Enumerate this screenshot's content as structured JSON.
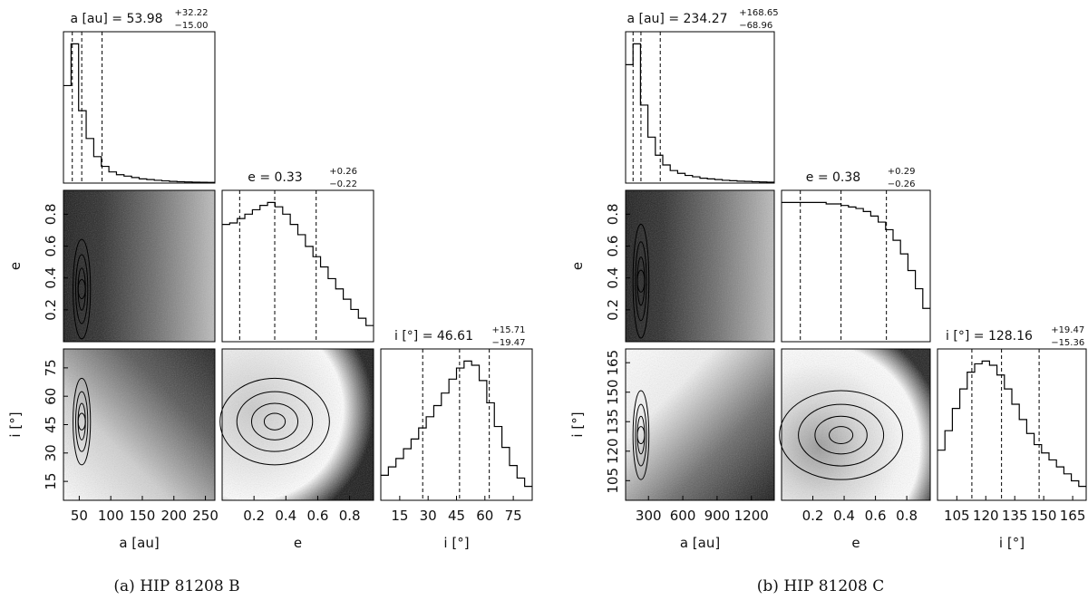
{
  "figures": [
    {
      "caption": "(a) HIP 81208 B",
      "params": [
        {
          "key": "a",
          "axis_label": "a [au]",
          "title_name": "a [au]",
          "median": "53.98",
          "plus": "+32.22",
          "minus": "−15.00",
          "range": [
            25,
            265
          ],
          "ticks": [
            50,
            100,
            150,
            200,
            250
          ],
          "ticklabels": [
            "50",
            "100",
            "150",
            "200",
            "250"
          ],
          "quantiles": [
            38.98,
            53.98,
            86.2
          ],
          "hist": [
            0.7,
            1.0,
            0.52,
            0.32,
            0.19,
            0.12,
            0.08,
            0.06,
            0.05,
            0.04,
            0.03,
            0.025,
            0.02,
            0.016,
            0.012,
            0.01,
            0.008,
            0.007,
            0.006,
            0.005
          ]
        },
        {
          "key": "e",
          "axis_label": "e",
          "title_name": "e",
          "median": "0.33",
          "plus": "+0.26",
          "minus": "−0.22",
          "range": [
            0,
            0.95
          ],
          "ticks": [
            0.2,
            0.4,
            0.6,
            0.8
          ],
          "ticklabels": [
            "0.2",
            "0.4",
            "0.6",
            "0.8"
          ],
          "quantiles": [
            0.11,
            0.33,
            0.59
          ],
          "hist": [
            0.8,
            0.81,
            0.84,
            0.87,
            0.9,
            0.93,
            0.95,
            0.92,
            0.87,
            0.8,
            0.73,
            0.65,
            0.58,
            0.51,
            0.43,
            0.36,
            0.29,
            0.22,
            0.16,
            0.11
          ]
        },
        {
          "key": "i",
          "axis_label": "i [°]",
          "title_name": "i [°]",
          "median": "46.61",
          "plus": "+15.71",
          "minus": "−19.47",
          "range": [
            5,
            85
          ],
          "ticks": [
            15,
            30,
            45,
            60,
            75
          ],
          "ticklabels": [
            "15",
            "30",
            "45",
            "60",
            "75"
          ],
          "quantiles": [
            27.14,
            46.61,
            62.32
          ],
          "hist": [
            0.18,
            0.24,
            0.3,
            0.37,
            0.44,
            0.52,
            0.6,
            0.68,
            0.77,
            0.87,
            0.95,
            1.0,
            0.97,
            0.86,
            0.7,
            0.53,
            0.38,
            0.25,
            0.16,
            0.1
          ]
        }
      ]
    },
    {
      "caption": "(b) HIP 81208 C",
      "params": [
        {
          "key": "a",
          "axis_label": "a [au]",
          "title_name": "a [au]",
          "median": "234.27",
          "plus": "+168.65",
          "minus": "−68.96",
          "range": [
            100,
            1400
          ],
          "ticks": [
            300,
            600,
            900,
            1200
          ],
          "ticklabels": [
            "300",
            "600",
            "900",
            "1200"
          ],
          "quantiles": [
            165.31,
            234.27,
            402.92
          ],
          "hist": [
            0.85,
            1.0,
            0.56,
            0.33,
            0.2,
            0.13,
            0.09,
            0.07,
            0.055,
            0.045,
            0.035,
            0.03,
            0.025,
            0.02,
            0.017,
            0.014,
            0.012,
            0.01,
            0.008,
            0.007
          ]
        },
        {
          "key": "e",
          "axis_label": "e",
          "title_name": "e",
          "median": "0.38",
          "plus": "+0.29",
          "minus": "−0.26",
          "range": [
            0,
            0.95
          ],
          "ticks": [
            0.2,
            0.4,
            0.6,
            0.8
          ],
          "ticklabels": [
            "0.2",
            "0.4",
            "0.6",
            "0.8"
          ],
          "quantiles": [
            0.12,
            0.38,
            0.67
          ],
          "hist": [
            0.92,
            0.92,
            0.92,
            0.92,
            0.92,
            0.92,
            0.91,
            0.91,
            0.9,
            0.89,
            0.88,
            0.86,
            0.83,
            0.79,
            0.74,
            0.67,
            0.58,
            0.47,
            0.35,
            0.22
          ]
        },
        {
          "key": "i",
          "axis_label": "i [°]",
          "title_name": "i [°]",
          "median": "128.16",
          "plus": "+19.47",
          "minus": "−15.36",
          "range": [
            95,
            172
          ],
          "ticks": [
            105,
            120,
            135,
            150,
            165
          ],
          "ticklabels": [
            "105",
            "120",
            "135",
            "150",
            "165"
          ],
          "quantiles": [
            112.8,
            128.16,
            147.63
          ],
          "hist": [
            0.36,
            0.5,
            0.66,
            0.8,
            0.92,
            0.98,
            1.0,
            0.97,
            0.9,
            0.8,
            0.69,
            0.58,
            0.48,
            0.4,
            0.34,
            0.29,
            0.24,
            0.19,
            0.14,
            0.1
          ]
        }
      ]
    }
  ],
  "chart_data": [
    {
      "type": "corner",
      "target": "HIP 81208 B",
      "parameters": [
        "a [au]",
        "e",
        "i [°]"
      ],
      "medians": {
        "a [au]": 53.98,
        "e": 0.33,
        "i [°]": 46.61
      },
      "errors_plus": {
        "a [au]": 32.22,
        "e": 0.26,
        "i [°]": 15.71
      },
      "errors_minus": {
        "a [au]": 15.0,
        "e": 0.22,
        "i [°]": 19.47
      },
      "ranges": {
        "a [au]": [
          25,
          265
        ],
        "e": [
          0,
          0.95
        ],
        "i [°]": [
          5,
          85
        ]
      }
    },
    {
      "type": "corner",
      "target": "HIP 81208 C",
      "parameters": [
        "a [au]",
        "e",
        "i [°]"
      ],
      "medians": {
        "a [au]": 234.27,
        "e": 0.38,
        "i [°]": 128.16
      },
      "errors_plus": {
        "a [au]": 168.65,
        "e": 0.29,
        "i [°]": 19.47
      },
      "errors_minus": {
        "a [au]": 68.96,
        "e": 0.26,
        "i [°]": 15.36
      },
      "ranges": {
        "a [au]": [
          100,
          1400
        ],
        "e": [
          0,
          0.95
        ],
        "i [°]": [
          95,
          172
        ]
      }
    }
  ]
}
